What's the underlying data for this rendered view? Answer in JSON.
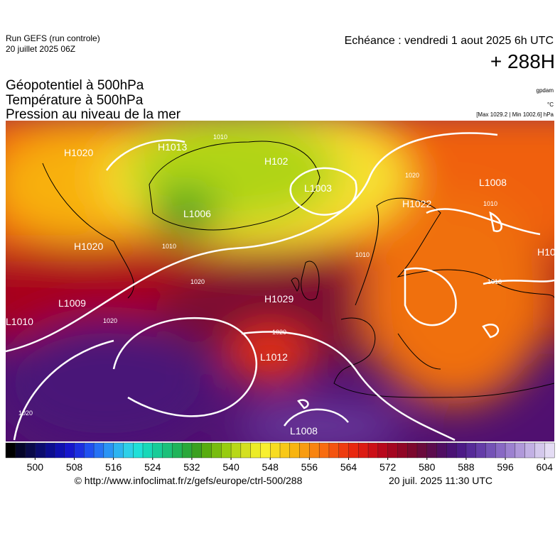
{
  "header": {
    "run": "Run GEFS (run controle)",
    "run_date": "20 juillet 2025 06Z",
    "valid": "Echéance : vendredi 1 aout 2025 6h UTC",
    "lead": "+ 288H",
    "fields": [
      "Géopotentiel à 500hPa",
      "Température à 500hPa",
      "Pression au niveau de la mer"
    ],
    "units": [
      "gpdam",
      "°C",
      "[Max 1029.2 | Min 1002.6] hPa"
    ]
  },
  "map": {
    "pressure_labels": [
      "H1020",
      "H1013",
      "H102",
      "L1003",
      "L1006",
      "H1020",
      "L1009",
      "L1010",
      "H1029",
      "L1012",
      "L1008",
      "H1022",
      "L1008",
      "H10"
    ],
    "isobar_labels": [
      "1010",
      "1020",
      "1020",
      "1020",
      "1020",
      "1010",
      "1010",
      "1010",
      "1020",
      "1010"
    ]
  },
  "colorbar": {
    "range": [
      494,
      606
    ],
    "ticks": [
      500,
      508,
      516,
      524,
      532,
      540,
      548,
      556,
      564,
      572,
      580,
      588,
      596,
      604
    ],
    "colors": [
      "#000000",
      "#05052a",
      "#0a0a4a",
      "#0c0c6e",
      "#0d0d90",
      "#1010b0",
      "#1616cc",
      "#1c2fe0",
      "#2050f0",
      "#2672f5",
      "#2a94f5",
      "#2db4f0",
      "#2ed0e8",
      "#20e0d8",
      "#18d8b8",
      "#18cc98",
      "#1cc07a",
      "#20b45a",
      "#2aa83a",
      "#3aa020",
      "#58ac10",
      "#78bc10",
      "#98cc10",
      "#b8d818",
      "#d4e020",
      "#ecec28",
      "#f8f030",
      "#f8dc20",
      "#f8c818",
      "#f8b410",
      "#f89c10",
      "#f88410",
      "#f86c10",
      "#f45410",
      "#ee3c10",
      "#e82810",
      "#dc1c14",
      "#cc1018",
      "#b8081c",
      "#a40620",
      "#900626",
      "#7c082e",
      "#6a0a3c",
      "#5c0c4e",
      "#500e62",
      "#4a1274",
      "#4c1a86",
      "#562a98",
      "#643ca8",
      "#7452b6",
      "#8868c4",
      "#9c80d0",
      "#b098da",
      "#c2b0e4",
      "#d4c8ec",
      "#e4dcf4"
    ]
  },
  "footer": {
    "source": "© http://www.infoclimat.fr/z/gefs/europe/ctrl-500/288",
    "issued": "20 juil. 2025 11:30 UTC"
  }
}
